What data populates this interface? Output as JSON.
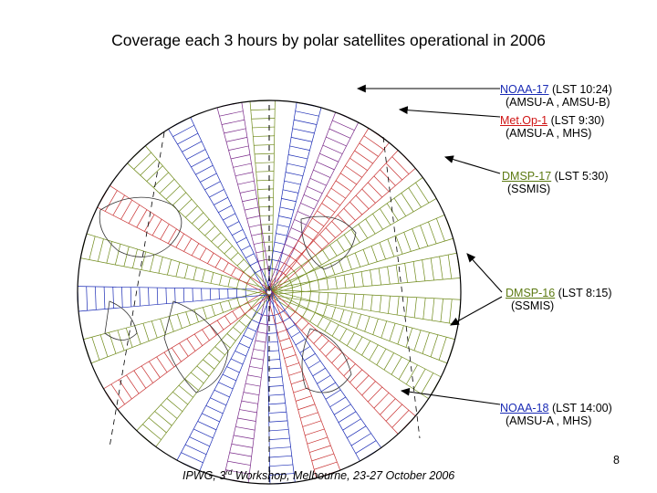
{
  "title": "Coverage each 3 hours by polar satellites operational in 2006",
  "satellites": [
    {
      "name": "NOAA-17",
      "lst": "(LST 10:24)",
      "instruments": "(AMSU-A , AMSU-B)",
      "color": "#1a2bb5"
    },
    {
      "name": "Met.Op-1",
      "lst": "(LST 9:30)",
      "instruments": "(AMSU-A , MHS)",
      "color": "#d01515"
    },
    {
      "name": "DMSP-17",
      "lst": "(LST 5:30)",
      "instruments": "(SSMIS)",
      "color": "#5c7a12"
    },
    {
      "name": "DMSP-16",
      "lst": "(LST 8:15)",
      "instruments": "(SSMIS)",
      "color": "#5c7a12"
    },
    {
      "name": "NOAA-18",
      "lst": "(LST 14:00)",
      "instruments": "(AMSU-A , MHS)",
      "color": "#1a2bb5"
    }
  ],
  "footer": {
    "prefix": "IPWG, 3",
    "sup": "rd",
    "suffix": " Workshop, Melbourne, 23-27 October 2006"
  },
  "page_number": "8",
  "colors": {
    "blue_swath": "#1a2bb5",
    "red_swath": "#c83030",
    "olive_swath": "#6f8a1a",
    "purple_swath": "#7a2a8a",
    "outline": "#000000"
  }
}
